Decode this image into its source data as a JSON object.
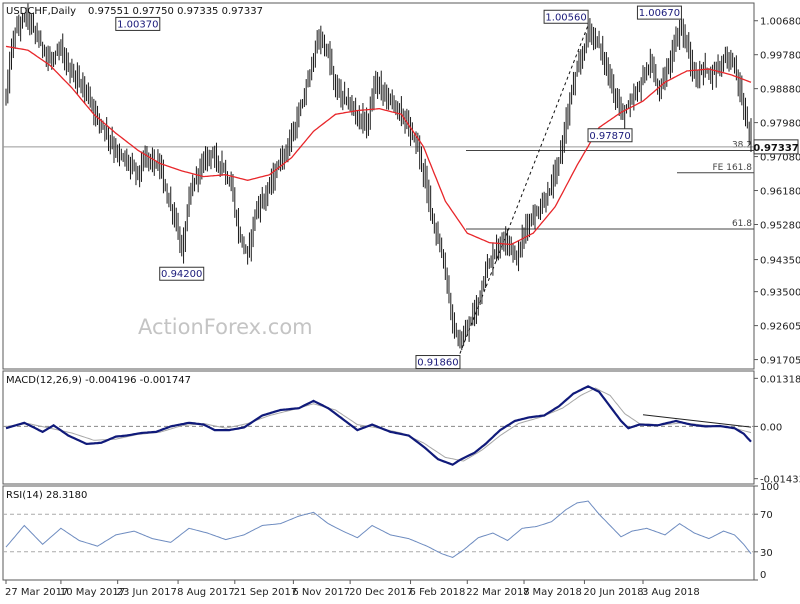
{
  "header": {
    "symbol": "USDCHF,Daily",
    "ohlc": "0.97551 0.97750 0.97335 0.97337"
  },
  "watermark": "ActionForex.com",
  "colors": {
    "candles": "#1a1a1a",
    "ema": "#e8262a",
    "macd": "#101a7a",
    "signal": "#a8a8a8",
    "rsi": "#6e8cc0",
    "border": "#5a5a5a",
    "level_line": "#7a7a7a"
  },
  "chart_data": [
    {
      "type": "ohlc",
      "title": "USDCHF,Daily",
      "ylim": [
        0.9145,
        1.0115
      ],
      "y_ticks": [
        1.0068,
        0.9978,
        0.9888,
        0.9798,
        0.9708,
        0.9618,
        0.9528,
        0.9435,
        0.935,
        0.926,
        0.917
      ],
      "y_tick_labels": [
        "1.00680",
        "0.99780",
        "0.98880",
        "0.97980",
        "0.97080",
        "0.96180",
        "0.95280",
        "0.94350",
        "0.93500",
        "0.92605",
        "0.91705"
      ],
      "x_tick_labels": [
        "27 Mar 2017",
        "10 May 2017",
        "23 Jun 2017",
        "8 Aug 2017",
        "21 Sep 2017",
        "6 Nov 2017",
        "20 Dec 2017",
        "6 Feb 2018",
        "22 Mar 2018",
        "7 May 2018",
        "20 Jun 2018",
        "3 Aug 2018"
      ],
      "price_path": [
        [
          0,
          0.987
        ],
        [
          4,
          1.003
        ],
        [
          11,
          1.0085
        ],
        [
          17,
          1.0025
        ],
        [
          24,
          0.996
        ],
        [
          30,
          0.999
        ],
        [
          34,
          0.994
        ],
        [
          38,
          0.992
        ],
        [
          44,
          0.988
        ],
        [
          48,
          0.983
        ],
        [
          54,
          0.978
        ],
        [
          60,
          0.972
        ],
        [
          66,
          0.9695
        ],
        [
          72,
          0.9665
        ],
        [
          77,
          0.971
        ],
        [
          84,
          0.968
        ],
        [
          88,
          0.9605
        ],
        [
          93,
          0.953
        ],
        [
          96,
          0.945
        ],
        [
          100,
          0.96
        ],
        [
          104,
          0.966
        ],
        [
          111,
          0.972
        ],
        [
          118,
          0.9685
        ],
        [
          123,
          0.9625
        ],
        [
          127,
          0.9505
        ],
        [
          132,
          0.9445
        ],
        [
          136,
          0.956
        ],
        [
          141,
          0.96
        ],
        [
          149,
          0.9685
        ],
        [
          157,
          0.977
        ],
        [
          162,
          0.985
        ],
        [
          167,
          0.9955
        ],
        [
          171,
          1.0025
        ],
        [
          176,
          0.998
        ],
        [
          180,
          0.989
        ],
        [
          187,
          0.985
        ],
        [
          193,
          0.981
        ],
        [
          197,
          0.9795
        ],
        [
          202,
          0.9905
        ],
        [
          208,
          0.987
        ],
        [
          215,
          0.983
        ],
        [
          220,
          0.9785
        ],
        [
          225,
          0.9735
        ],
        [
          230,
          0.962
        ],
        [
          235,
          0.9505
        ],
        [
          240,
          0.9405
        ],
        [
          244,
          0.9265
        ],
        [
          248,
          0.9205
        ],
        [
          252,
          0.925
        ],
        [
          257,
          0.931
        ],
        [
          262,
          0.9405
        ],
        [
          268,
          0.9465
        ],
        [
          273,
          0.9495
        ],
        [
          279,
          0.9435
        ],
        [
          284,
          0.9525
        ],
        [
          291,
          0.9565
        ],
        [
          296,
          0.9605
        ],
        [
          301,
          0.9675
        ],
        [
          305,
          0.9775
        ],
        [
          310,
          0.9905
        ],
        [
          315,
          0.998
        ],
        [
          318,
          1.0045
        ],
        [
          323,
          1.0015
        ],
        [
          328,
          0.9945
        ],
        [
          332,
          0.9875
        ],
        [
          337,
          0.982
        ],
        [
          342,
          0.9855
        ],
        [
          347,
          0.9905
        ],
        [
          352,
          0.9955
        ],
        [
          356,
          0.9885
        ],
        [
          360,
          0.9915
        ],
        [
          365,
          1.0005
        ],
        [
          369,
          1.0055
        ],
        [
          373,
          0.9975
        ],
        [
          377,
          0.9905
        ],
        [
          381,
          0.9945
        ],
        [
          386,
          0.9925
        ],
        [
          390,
          0.9955
        ],
        [
          394,
          0.9975
        ],
        [
          398,
          0.9955
        ],
        [
          402,
          0.9855
        ],
        [
          406,
          0.9775
        ],
        [
          407,
          0.9734
        ]
      ],
      "ema_path": [
        [
          0,
          1.0
        ],
        [
          12,
          0.999
        ],
        [
          24,
          0.995
        ],
        [
          36,
          0.989
        ],
        [
          48,
          0.982
        ],
        [
          60,
          0.977
        ],
        [
          72,
          0.9725
        ],
        [
          84,
          0.969
        ],
        [
          96,
          0.967
        ],
        [
          108,
          0.9655
        ],
        [
          120,
          0.966
        ],
        [
          132,
          0.9645
        ],
        [
          144,
          0.966
        ],
        [
          156,
          0.9705
        ],
        [
          168,
          0.9775
        ],
        [
          180,
          0.982
        ],
        [
          192,
          0.983
        ],
        [
          204,
          0.9835
        ],
        [
          216,
          0.982
        ],
        [
          228,
          0.9735
        ],
        [
          240,
          0.959
        ],
        [
          252,
          0.9505
        ],
        [
          264,
          0.948
        ],
        [
          276,
          0.9475
        ],
        [
          288,
          0.9505
        ],
        [
          300,
          0.9575
        ],
        [
          312,
          0.9685
        ],
        [
          324,
          0.9785
        ],
        [
          336,
          0.9825
        ],
        [
          348,
          0.9855
        ],
        [
          360,
          0.9905
        ],
        [
          372,
          0.9935
        ],
        [
          384,
          0.994
        ],
        [
          396,
          0.9925
        ],
        [
          407,
          0.9905
        ]
      ],
      "price_labels": [
        {
          "text": "1.00370",
          "day": 72,
          "value": 1.0037
        },
        {
          "text": "0.94200",
          "day": 96,
          "value": 0.942
        },
        {
          "text": "0.91860",
          "day": 248,
          "value": 0.9186
        },
        {
          "text": "1.00560",
          "day": 318,
          "value": 1.0056
        },
        {
          "text": "0.97870",
          "day": 342,
          "value": 0.9787
        },
        {
          "text": "1.00670",
          "day": 369,
          "value": 1.0067
        }
      ],
      "levels": [
        {
          "label": "38.2",
          "value": 0.9724
        },
        {
          "label": "FE 161.8",
          "value": 0.9665
        },
        {
          "label": "61.8",
          "value": 0.9516
        }
      ],
      "current_price": "0.97337",
      "trendline": {
        "from": [
          248,
          0.9186
        ],
        "to": [
          318,
          1.0056
        ]
      }
    },
    {
      "type": "line",
      "title": "MACD(12,26,9) -0.004196 -0.001747",
      "ylim": [
        -0.0158,
        0.0152
      ],
      "y_ticks": [
        0.013184,
        0.0,
        -0.014339
      ],
      "y_tick_labels": [
        "0.013184",
        "0.00",
        "-0.014339"
      ],
      "macd_path": [
        [
          0,
          -0.0005
        ],
        [
          10,
          0.001
        ],
        [
          20,
          -0.0015
        ],
        [
          26,
          0.0003
        ],
        [
          34,
          -0.0025
        ],
        [
          44,
          -0.0048
        ],
        [
          52,
          -0.0045
        ],
        [
          60,
          -0.0028
        ],
        [
          66,
          -0.0025
        ],
        [
          74,
          -0.0018
        ],
        [
          82,
          -0.0015
        ],
        [
          90,
          0.0
        ],
        [
          100,
          0.001
        ],
        [
          108,
          0.0005
        ],
        [
          114,
          -0.001
        ],
        [
          122,
          -0.001
        ],
        [
          130,
          -0.0003
        ],
        [
          140,
          0.003
        ],
        [
          150,
          0.0045
        ],
        [
          160,
          0.005
        ],
        [
          168,
          0.007
        ],
        [
          176,
          0.005
        ],
        [
          184,
          0.002
        ],
        [
          192,
          -0.001
        ],
        [
          200,
          0.0005
        ],
        [
          210,
          -0.0015
        ],
        [
          220,
          -0.0025
        ],
        [
          228,
          -0.0055
        ],
        [
          236,
          -0.009
        ],
        [
          244,
          -0.0105
        ],
        [
          248,
          -0.0092
        ],
        [
          256,
          -0.0072
        ],
        [
          262,
          -0.0048
        ],
        [
          270,
          -0.001
        ],
        [
          278,
          0.0015
        ],
        [
          286,
          0.0025
        ],
        [
          294,
          0.003
        ],
        [
          302,
          0.0055
        ],
        [
          310,
          0.009
        ],
        [
          318,
          0.011
        ],
        [
          324,
          0.0095
        ],
        [
          330,
          0.0055
        ],
        [
          336,
          0.0015
        ],
        [
          340,
          -0.0005
        ],
        [
          346,
          0.0005
        ],
        [
          356,
          0.0003
        ],
        [
          366,
          0.0015
        ],
        [
          374,
          0.0005
        ],
        [
          382,
          0.0
        ],
        [
          390,
          0.0001
        ],
        [
          398,
          -0.0005
        ],
        [
          403,
          -0.002
        ],
        [
          407,
          -0.0042
        ]
      ],
      "signal_path": [
        [
          0,
          0.0
        ],
        [
          12,
          0.0008
        ],
        [
          24,
          -0.0005
        ],
        [
          36,
          -0.0018
        ],
        [
          48,
          -0.0038
        ],
        [
          60,
          -0.0035
        ],
        [
          72,
          -0.0022
        ],
        [
          84,
          -0.0016
        ],
        [
          96,
          0.0002
        ],
        [
          108,
          0.0008
        ],
        [
          120,
          -0.0005
        ],
        [
          132,
          0.0008
        ],
        [
          144,
          0.003
        ],
        [
          156,
          0.0045
        ],
        [
          168,
          0.0062
        ],
        [
          180,
          0.0045
        ],
        [
          192,
          0.0005
        ],
        [
          204,
          -0.0005
        ],
        [
          216,
          -0.0018
        ],
        [
          228,
          -0.0045
        ],
        [
          240,
          -0.0085
        ],
        [
          250,
          -0.0095
        ],
        [
          260,
          -0.0065
        ],
        [
          270,
          -0.0025
        ],
        [
          280,
          0.0008
        ],
        [
          292,
          0.0025
        ],
        [
          304,
          0.005
        ],
        [
          314,
          0.0085
        ],
        [
          322,
          0.0105
        ],
        [
          330,
          0.0085
        ],
        [
          338,
          0.0035
        ],
        [
          346,
          0.0008
        ],
        [
          358,
          0.0004
        ],
        [
          370,
          0.001
        ],
        [
          382,
          0.0003
        ],
        [
          394,
          0.0
        ],
        [
          407,
          -0.0017
        ]
      ],
      "trendline": {
        "from": [
          348,
          0.0032
        ],
        "to": [
          407,
          -0.0002
        ]
      }
    },
    {
      "type": "line",
      "title": "RSI(14) 28.3180",
      "ylim": [
        0,
        100
      ],
      "y_ticks": [
        100,
        70,
        30,
        0
      ],
      "y_tick_labels": [
        "100",
        "70",
        "30",
        "0"
      ],
      "rsi_path": [
        [
          0,
          35
        ],
        [
          10,
          58
        ],
        [
          20,
          38
        ],
        [
          30,
          55
        ],
        [
          40,
          42
        ],
        [
          50,
          36
        ],
        [
          60,
          48
        ],
        [
          70,
          52
        ],
        [
          80,
          44
        ],
        [
          90,
          40
        ],
        [
          100,
          55
        ],
        [
          110,
          50
        ],
        [
          120,
          43
        ],
        [
          130,
          48
        ],
        [
          140,
          58
        ],
        [
          150,
          60
        ],
        [
          160,
          68
        ],
        [
          168,
          72
        ],
        [
          176,
          60
        ],
        [
          184,
          52
        ],
        [
          192,
          45
        ],
        [
          200,
          58
        ],
        [
          210,
          48
        ],
        [
          220,
          44
        ],
        [
          230,
          36
        ],
        [
          238,
          28
        ],
        [
          244,
          24
        ],
        [
          250,
          32
        ],
        [
          258,
          45
        ],
        [
          266,
          50
        ],
        [
          274,
          42
        ],
        [
          282,
          55
        ],
        [
          290,
          57
        ],
        [
          298,
          62
        ],
        [
          306,
          75
        ],
        [
          312,
          82
        ],
        [
          318,
          84
        ],
        [
          324,
          70
        ],
        [
          330,
          58
        ],
        [
          336,
          46
        ],
        [
          342,
          52
        ],
        [
          350,
          55
        ],
        [
          360,
          48
        ],
        [
          368,
          60
        ],
        [
          376,
          50
        ],
        [
          384,
          44
        ],
        [
          392,
          52
        ],
        [
          398,
          48
        ],
        [
          403,
          38
        ],
        [
          407,
          28
        ]
      ]
    }
  ]
}
